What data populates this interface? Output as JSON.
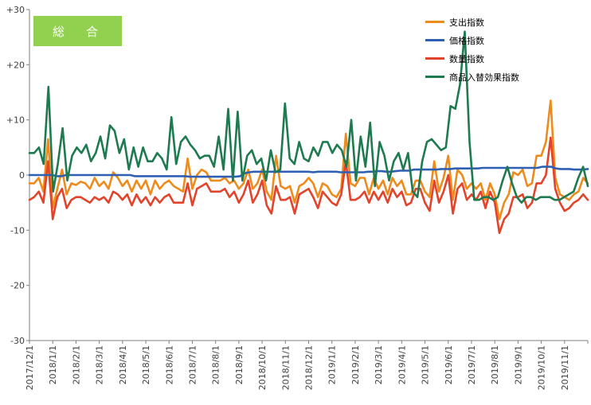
{
  "badge": "総　合",
  "chart_data": {
    "type": "line",
    "ylim": [
      -30,
      30
    ],
    "y_ticks": [
      30,
      20,
      10,
      0,
      -10,
      -20,
      -30
    ],
    "y_tick_labels": [
      "+30",
      "+20",
      "+10",
      "0",
      "-10",
      "-20",
      "-30"
    ],
    "x_labels": [
      "2017/12/1",
      "2018/1/1",
      "2018/2/1",
      "2018/3/1",
      "2018/4/1",
      "2018/5/1",
      "2018/6/1",
      "2018/7/1",
      "2018/8/1",
      "2018/9/1",
      "2018/10/1",
      "2018/11/1",
      "2018/12/1",
      "2019/1/1",
      "2019/2/1",
      "2019/3/1",
      "2019/4/1",
      "2019/5/1",
      "2019/6/1",
      "2019/7/1",
      "2019/8/1",
      "2019/9/1",
      "2019/10/1",
      "2019/11/1"
    ],
    "x_range": [
      0,
      24
    ],
    "grid": false,
    "legend_position": "top-right",
    "series": [
      {
        "name": "支出指数",
        "color": "#ed8b1c",
        "values": [
          -1.5,
          -1.5,
          -0.5,
          -3,
          6.5,
          -6,
          -2.5,
          1,
          -3.5,
          -1.5,
          -1.8,
          -1.2,
          -1.5,
          -2.5,
          -0.5,
          -2,
          -1.2,
          -2.5,
          0.5,
          -0.5,
          -2,
          -1,
          -3,
          -1,
          -2.5,
          -1,
          -3.5,
          -1,
          -2.5,
          -1.5,
          -1,
          -2,
          -2.5,
          -3,
          3,
          -2.5,
          0,
          1,
          0.5,
          -1,
          -1,
          -1,
          -0.5,
          -1.5,
          -1,
          -2.5,
          -1.5,
          1,
          -2.5,
          -1.5,
          1,
          -3,
          -4.5,
          3.5,
          -2,
          -2.5,
          -2,
          -5,
          -2,
          -1.5,
          -0.5,
          -1.5,
          -4,
          -1.5,
          -2,
          -3.5,
          -4,
          -2.5,
          7.5,
          -1.5,
          -2,
          -0.5,
          -0.5,
          -3.5,
          -0.5,
          -2.5,
          -1,
          -3.5,
          -0.5,
          -2,
          -1,
          -3.5,
          -3.5,
          -1,
          -1,
          -3,
          -4,
          2.5,
          -3,
          -0.5,
          3.5,
          -4.5,
          1,
          0,
          -2.5,
          -1.5,
          -2.5,
          -1.5,
          -4.5,
          -1.5,
          -3.5,
          -8,
          -5,
          -3.5,
          0.5,
          0,
          1,
          -2,
          -1.5,
          3.5,
          3.5,
          6,
          13.5,
          -0.5,
          -3.5,
          -4,
          -4.5,
          -3.5,
          -3,
          -0.5,
          -1.5
        ]
      },
      {
        "name": "価格指数",
        "color": "#2f5fb3",
        "values": [
          0,
          0,
          0,
          0,
          0,
          0,
          -0.2,
          -0.2,
          0,
          0,
          0,
          0,
          0,
          0,
          0,
          0,
          0,
          0,
          0,
          0,
          0,
          0,
          0,
          -0.2,
          -0.2,
          -0.2,
          -0.2,
          -0.2,
          -0.2,
          -0.2,
          -0.2,
          -0.2,
          -0.2,
          -0.2,
          -0.2,
          -0.3,
          -0.3,
          -0.3,
          -0.3,
          -0.3,
          -0.3,
          -0.3,
          -0.3,
          -0.3,
          -0.3,
          -0.3,
          -0.2,
          0.3,
          0.5,
          0.6,
          0.6,
          0.6,
          0.6,
          0.6,
          0.6,
          0.6,
          0.6,
          0.6,
          0.6,
          0.6,
          0.6,
          0.6,
          0.5,
          0.6,
          0.6,
          0.6,
          0.6,
          0.6,
          0.5,
          0.5,
          0.5,
          0.5,
          0.5,
          0.5,
          0.6,
          0.6,
          0.7,
          0.7,
          0.6,
          0.6,
          0.7,
          0.8,
          0.8,
          0.8,
          1,
          1,
          1,
          1,
          1,
          1,
          1.1,
          1.1,
          1.1,
          1.2,
          1.2,
          1.2,
          1.2,
          1.2,
          1.2,
          1.3,
          1.3,
          1.3,
          1.3,
          1.3,
          1.3,
          1.3,
          1.3,
          1.3,
          1.3,
          1.3,
          1.3,
          1.3,
          1.5,
          1.5,
          1.5,
          1.2,
          1.1,
          1.1,
          1.1,
          1,
          1,
          1,
          1.1
        ]
      },
      {
        "name": "数量指数",
        "color": "#e2432a",
        "values": [
          -4.5,
          -4,
          -3,
          -5,
          2.5,
          -8,
          -4,
          -2.5,
          -6,
          -4.5,
          -4,
          -4,
          -4.5,
          -5,
          -4,
          -4.5,
          -4,
          -5,
          -3,
          -3.5,
          -4.5,
          -3.5,
          -5.5,
          -3.5,
          -5,
          -4,
          -5.5,
          -4,
          -5,
          -4,
          -3.5,
          -5,
          -5,
          -5,
          -1.5,
          -5.5,
          -2.5,
          -2,
          -1.5,
          -3,
          -3,
          -3,
          -2.5,
          -4,
          -3,
          -5,
          -3.5,
          -1,
          -5,
          -3.5,
          -1,
          -5.5,
          -7,
          -2,
          -4.5,
          -4.5,
          -4,
          -7,
          -3.5,
          -3,
          -2.5,
          -4,
          -6,
          -3,
          -4,
          -5,
          -5.5,
          -3.5,
          2.5,
          -4.5,
          -4.5,
          -4,
          -3,
          -5,
          -3,
          -4.5,
          -3,
          -5,
          -2.5,
          -4,
          -3,
          -5.5,
          -5,
          -2.5,
          -2.5,
          -5,
          -6.5,
          -1,
          -5,
          -3,
          0,
          -7,
          -2.5,
          -1.5,
          -4.5,
          -3.5,
          -4.5,
          -3,
          -6,
          -3,
          -5,
          -10.5,
          -8,
          -7,
          -4,
          -4,
          -3.5,
          -6,
          -5,
          -1.5,
          -1.5,
          0,
          6.8,
          -2.5,
          -5,
          -6.5,
          -6,
          -5,
          -4.5,
          -3.5,
          -4.5
        ]
      },
      {
        "name": "商品入替効果指数",
        "color": "#1e7a4f",
        "values": [
          4,
          4,
          5,
          2,
          16,
          -3,
          2,
          8.5,
          -1,
          3.5,
          5,
          4,
          5.5,
          2.5,
          4,
          7,
          3,
          9,
          8,
          4,
          6.5,
          1,
          5,
          1.5,
          5,
          2.5,
          2.5,
          4,
          3,
          1,
          10.5,
          2,
          6,
          7,
          5.5,
          4.5,
          3,
          3.5,
          3.5,
          1.5,
          7,
          1,
          12,
          -1,
          11.5,
          -1,
          3.5,
          4.5,
          2,
          3,
          -1,
          4.5,
          0.5,
          1,
          13,
          3,
          2,
          6,
          3,
          2.5,
          5,
          3.5,
          6,
          6,
          4,
          5.5,
          4.5,
          1.5,
          10,
          -1,
          7,
          1.5,
          9.5,
          -2,
          6,
          3.5,
          -1,
          2.5,
          4,
          1,
          4,
          -3,
          -4,
          2.5,
          6,
          6.5,
          5.5,
          4.5,
          5,
          12.5,
          12,
          16.5,
          26,
          6,
          -4.5,
          -4.5,
          -4,
          -4,
          -4.5,
          -4,
          -1,
          1.5,
          -1.5,
          -4,
          -5,
          -4,
          -4,
          -4.5,
          -4,
          -4,
          -4,
          -4.5,
          -4.5,
          -4,
          -3.5,
          -3,
          -0.5,
          1.5,
          -2
        ]
      }
    ]
  }
}
